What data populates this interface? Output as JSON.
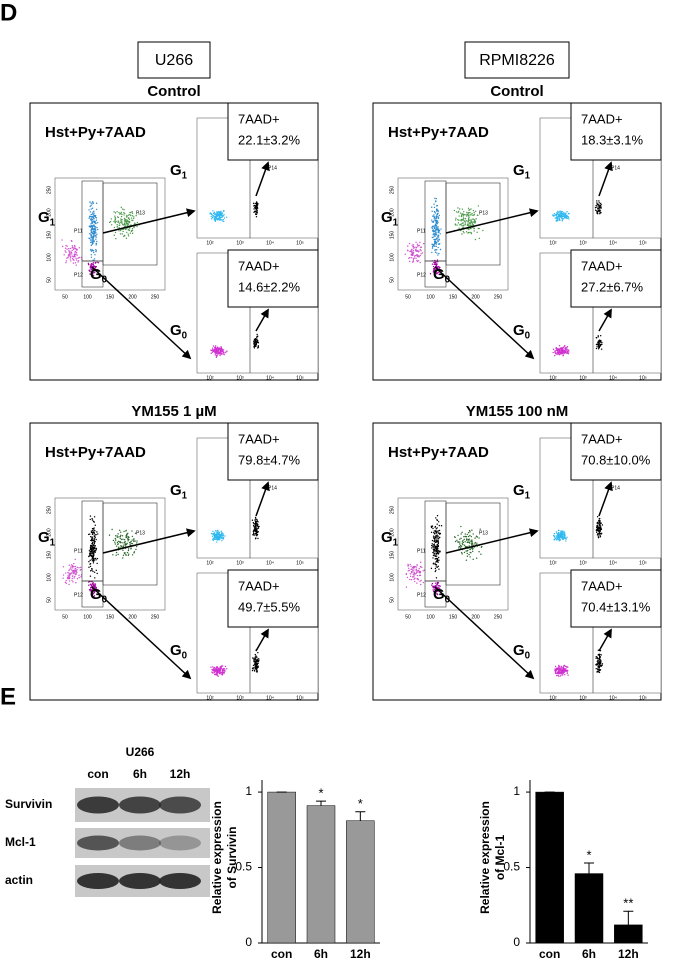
{
  "panel_d": {
    "label": "D",
    "lines": [
      {
        "name": "U266",
        "panels": [
          {
            "condition": "Control",
            "stain": "Hst+Py+7AAD",
            "upper": {
              "marker": "7AAD+",
              "value": "22.1±3.2%"
            },
            "lower": {
              "marker": "7AAD+",
              "value": "14.6±2.2%"
            }
          },
          {
            "condition": "YM155 1 µM",
            "stain": "Hst+Py+7AAD",
            "upper": {
              "marker": "7AAD+",
              "value": "79.8±4.7%"
            },
            "lower": {
              "marker": "7AAD+",
              "value": "49.7±5.5%"
            }
          }
        ]
      },
      {
        "name": "RPMI8226",
        "panels": [
          {
            "condition": "Control",
            "stain": "Hst+Py+7AAD",
            "upper": {
              "marker": "7AAD+",
              "value": "18.3±3.1%"
            },
            "lower": {
              "marker": "7AAD+",
              "value": "27.2±6.7%"
            }
          },
          {
            "condition": "YM155 100 nM",
            "stain": "Hst+Py+7AAD",
            "upper": {
              "marker": "7AAD+",
              "value": "70.8±10.0%"
            },
            "lower": {
              "marker": "7AAD+",
              "value": "70.4±13.1%"
            }
          }
        ]
      }
    ],
    "gates": {
      "g1": {
        "base": "G",
        "sub": "1"
      },
      "g0": {
        "base": "G",
        "sub": "0"
      }
    },
    "gate_ids": [
      "P11",
      "P12",
      "P13",
      "P14",
      "P15"
    ],
    "scatter_ticks": [
      "50",
      "100",
      "150",
      "200",
      "250"
    ],
    "log_ticks": [
      "10²",
      "10³",
      "10⁴",
      "10⁵"
    ]
  },
  "panel_e": {
    "label": "E",
    "blot": {
      "cell_line": "U266",
      "lanes": [
        "con",
        "6h",
        "12h"
      ],
      "proteins": [
        "Survivin",
        "Mcl-1",
        "actin"
      ]
    },
    "charts": [
      {
        "type": "bar",
        "ylabel": [
          "Relative expression",
          "of Survivin"
        ],
        "categories": [
          "con",
          "6h",
          "12h"
        ],
        "values": [
          1,
          0.91,
          0.81
        ],
        "errors": [
          0,
          0.03,
          0.06
        ],
        "color": "#999999",
        "ylim": [
          0,
          1.08
        ],
        "yticks": [
          0,
          0.5,
          1
        ],
        "annotations": [
          {
            "index": 1,
            "text": "*"
          },
          {
            "index": 2,
            "text": "*"
          }
        ]
      },
      {
        "type": "bar",
        "ylabel": [
          "Relative expression",
          "of Mcl-1"
        ],
        "categories": [
          "con",
          "6h",
          "12h"
        ],
        "values": [
          1,
          0.46,
          0.12
        ],
        "errors": [
          0,
          0.07,
          0.09
        ],
        "color": "#000000",
        "ylim": [
          0,
          1.08
        ],
        "yticks": [
          0,
          0.5,
          1
        ],
        "annotations": [
          {
            "index": 1,
            "text": "*"
          },
          {
            "index": 2,
            "text": "**"
          }
        ]
      }
    ]
  }
}
